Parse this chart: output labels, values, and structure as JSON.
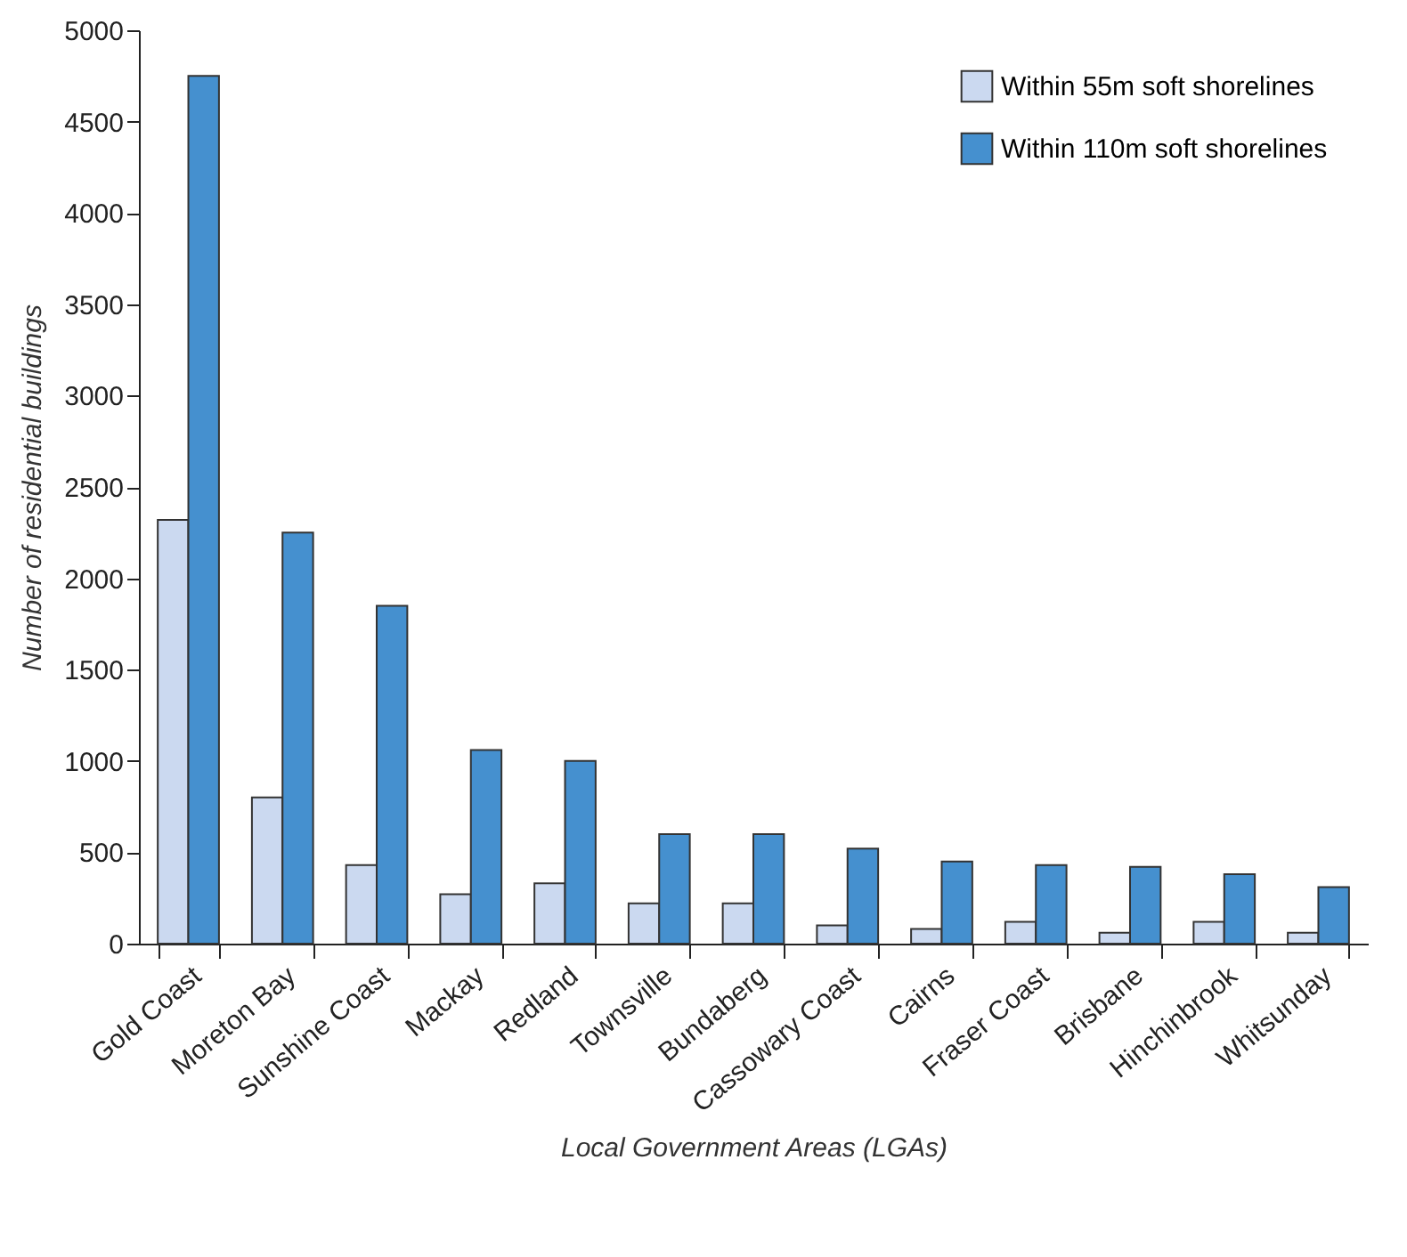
{
  "chart_data": {
    "type": "bar",
    "xlabel": "Local Government Areas (LGAs)",
    "ylabel": "Number of residential buildings",
    "categories": [
      "Gold Coast",
      "Moreton Bay",
      "Sunshine Coast",
      "Mackay",
      "Redland",
      "Townsville",
      "Bundaberg",
      "Cassowary Coast",
      "Cairns",
      "Fraser Coast",
      "Brisbane",
      "Hinchinbrook",
      "Whitsunday"
    ],
    "series": [
      {
        "name": "Within 55m soft shorelines",
        "color": "#cbd9f0",
        "values": [
          2320,
          800,
          430,
          270,
          330,
          220,
          220,
          100,
          80,
          120,
          60,
          120,
          60
        ]
      },
      {
        "name": "Within 110m soft shorelines",
        "color": "#4590cf",
        "values": [
          4750,
          2250,
          1850,
          1060,
          1000,
          600,
          600,
          520,
          450,
          430,
          420,
          380,
          310
        ]
      }
    ],
    "ylim": [
      0,
      5000
    ],
    "yticks": [
      0,
      500,
      1000,
      1500,
      2000,
      2500,
      3000,
      3500,
      4000,
      4500,
      5000
    ],
    "grid": false,
    "legend": "top right"
  }
}
